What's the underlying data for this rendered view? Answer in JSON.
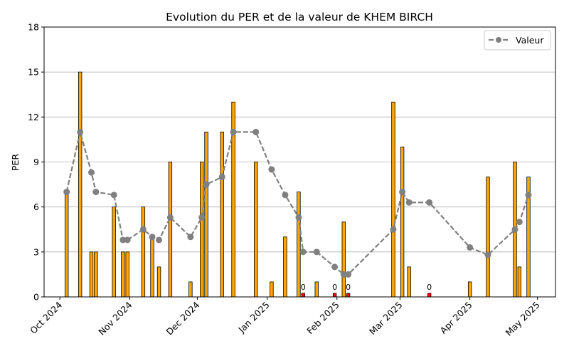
{
  "chart_data": {
    "type": "bar",
    "title": "Evolution du PER et de la valeur de KHEM BIRCH",
    "ylabel": "PER",
    "xlabel": "",
    "ylim": [
      0,
      18
    ],
    "yticks": [
      "0",
      "3",
      "6",
      "9",
      "12",
      "15",
      "18"
    ],
    "xlim": [
      "2024-09-24",
      "2025-05-09"
    ],
    "xticks": [
      {
        "date": "2024-10-01",
        "label": "Oct 2024"
      },
      {
        "date": "2024-11-01",
        "label": "Nov 2024"
      },
      {
        "date": "2024-12-01",
        "label": "Dec 2024"
      },
      {
        "date": "2025-01-01",
        "label": "Jan 2025"
      },
      {
        "date": "2025-02-01",
        "label": "Feb 2025"
      },
      {
        "date": "2025-03-01",
        "label": "Mar 2025"
      },
      {
        "date": "2025-04-01",
        "label": "Apr 2025"
      },
      {
        "date": "2025-05-01",
        "label": "May 2025"
      }
    ],
    "grid": "horizontal",
    "legend_position": "top-right",
    "colors": {
      "bar": "#ffa500",
      "bar_zero": "#ff0000",
      "bar_edge": "#000000",
      "line": "#808080",
      "grid": "#b0b0b0"
    },
    "zero_bar_label": "0",
    "bars": [
      {
        "date": "2024-10-04",
        "per": 7
      },
      {
        "date": "2024-10-10",
        "per": 15
      },
      {
        "date": "2024-10-15",
        "per": 3
      },
      {
        "date": "2024-10-17",
        "per": 3
      },
      {
        "date": "2024-10-25",
        "per": 6
      },
      {
        "date": "2024-10-29",
        "per": 3
      },
      {
        "date": "2024-10-31",
        "per": 3
      },
      {
        "date": "2024-11-07",
        "per": 6
      },
      {
        "date": "2024-11-11",
        "per": 4
      },
      {
        "date": "2024-11-14",
        "per": 2
      },
      {
        "date": "2024-11-19",
        "per": 9
      },
      {
        "date": "2024-11-28",
        "per": 1
      },
      {
        "date": "2024-12-03",
        "per": 9
      },
      {
        "date": "2024-12-05",
        "per": 11
      },
      {
        "date": "2024-12-12",
        "per": 11
      },
      {
        "date": "2024-12-17",
        "per": 13
      },
      {
        "date": "2024-12-27",
        "per": 9
      },
      {
        "date": "2025-01-03",
        "per": 1
      },
      {
        "date": "2025-01-09",
        "per": 4
      },
      {
        "date": "2025-01-15",
        "per": 7
      },
      {
        "date": "2025-01-17",
        "per": 0
      },
      {
        "date": "2025-01-23",
        "per": 1
      },
      {
        "date": "2025-01-31",
        "per": 0
      },
      {
        "date": "2025-02-04",
        "per": 5
      },
      {
        "date": "2025-02-06",
        "per": 0
      },
      {
        "date": "2025-02-26",
        "per": 13
      },
      {
        "date": "2025-03-02",
        "per": 10
      },
      {
        "date": "2025-03-05",
        "per": 2
      },
      {
        "date": "2025-03-14",
        "per": 0
      },
      {
        "date": "2025-04-01",
        "per": 1
      },
      {
        "date": "2025-04-09",
        "per": 8
      },
      {
        "date": "2025-04-21",
        "per": 9
      },
      {
        "date": "2025-04-23",
        "per": 2
      },
      {
        "date": "2025-04-27",
        "per": 8
      }
    ],
    "series": [
      {
        "name": "Valeur",
        "type": "line",
        "points": [
          {
            "date": "2024-10-04",
            "y": 7.0
          },
          {
            "date": "2024-10-10",
            "y": 11.0
          },
          {
            "date": "2024-10-15",
            "y": 8.3
          },
          {
            "date": "2024-10-17",
            "y": 7.0
          },
          {
            "date": "2024-10-25",
            "y": 6.8
          },
          {
            "date": "2024-10-29",
            "y": 3.8
          },
          {
            "date": "2024-10-31",
            "y": 3.8
          },
          {
            "date": "2024-11-07",
            "y": 4.5
          },
          {
            "date": "2024-11-11",
            "y": 4.0
          },
          {
            "date": "2024-11-14",
            "y": 3.8
          },
          {
            "date": "2024-11-19",
            "y": 5.3
          },
          {
            "date": "2024-11-28",
            "y": 4.0
          },
          {
            "date": "2024-12-03",
            "y": 5.3
          },
          {
            "date": "2024-12-05",
            "y": 7.5
          },
          {
            "date": "2024-12-12",
            "y": 8.0
          },
          {
            "date": "2024-12-17",
            "y": 11.0
          },
          {
            "date": "2024-12-27",
            "y": 11.0
          },
          {
            "date": "2025-01-03",
            "y": 8.5
          },
          {
            "date": "2025-01-09",
            "y": 6.8
          },
          {
            "date": "2025-01-15",
            "y": 5.3
          },
          {
            "date": "2025-01-17",
            "y": 3.0
          },
          {
            "date": "2025-01-23",
            "y": 3.0
          },
          {
            "date": "2025-01-31",
            "y": 2.0
          },
          {
            "date": "2025-02-04",
            "y": 1.5
          },
          {
            "date": "2025-02-06",
            "y": 1.5
          },
          {
            "date": "2025-02-26",
            "y": 4.5
          },
          {
            "date": "2025-03-02",
            "y": 7.0
          },
          {
            "date": "2025-03-05",
            "y": 6.3
          },
          {
            "date": "2025-03-14",
            "y": 6.3
          },
          {
            "date": "2025-04-01",
            "y": 3.3
          },
          {
            "date": "2025-04-09",
            "y": 2.8
          },
          {
            "date": "2025-04-21",
            "y": 4.5
          },
          {
            "date": "2025-04-23",
            "y": 5.0
          },
          {
            "date": "2025-04-27",
            "y": 6.8
          }
        ]
      }
    ]
  }
}
